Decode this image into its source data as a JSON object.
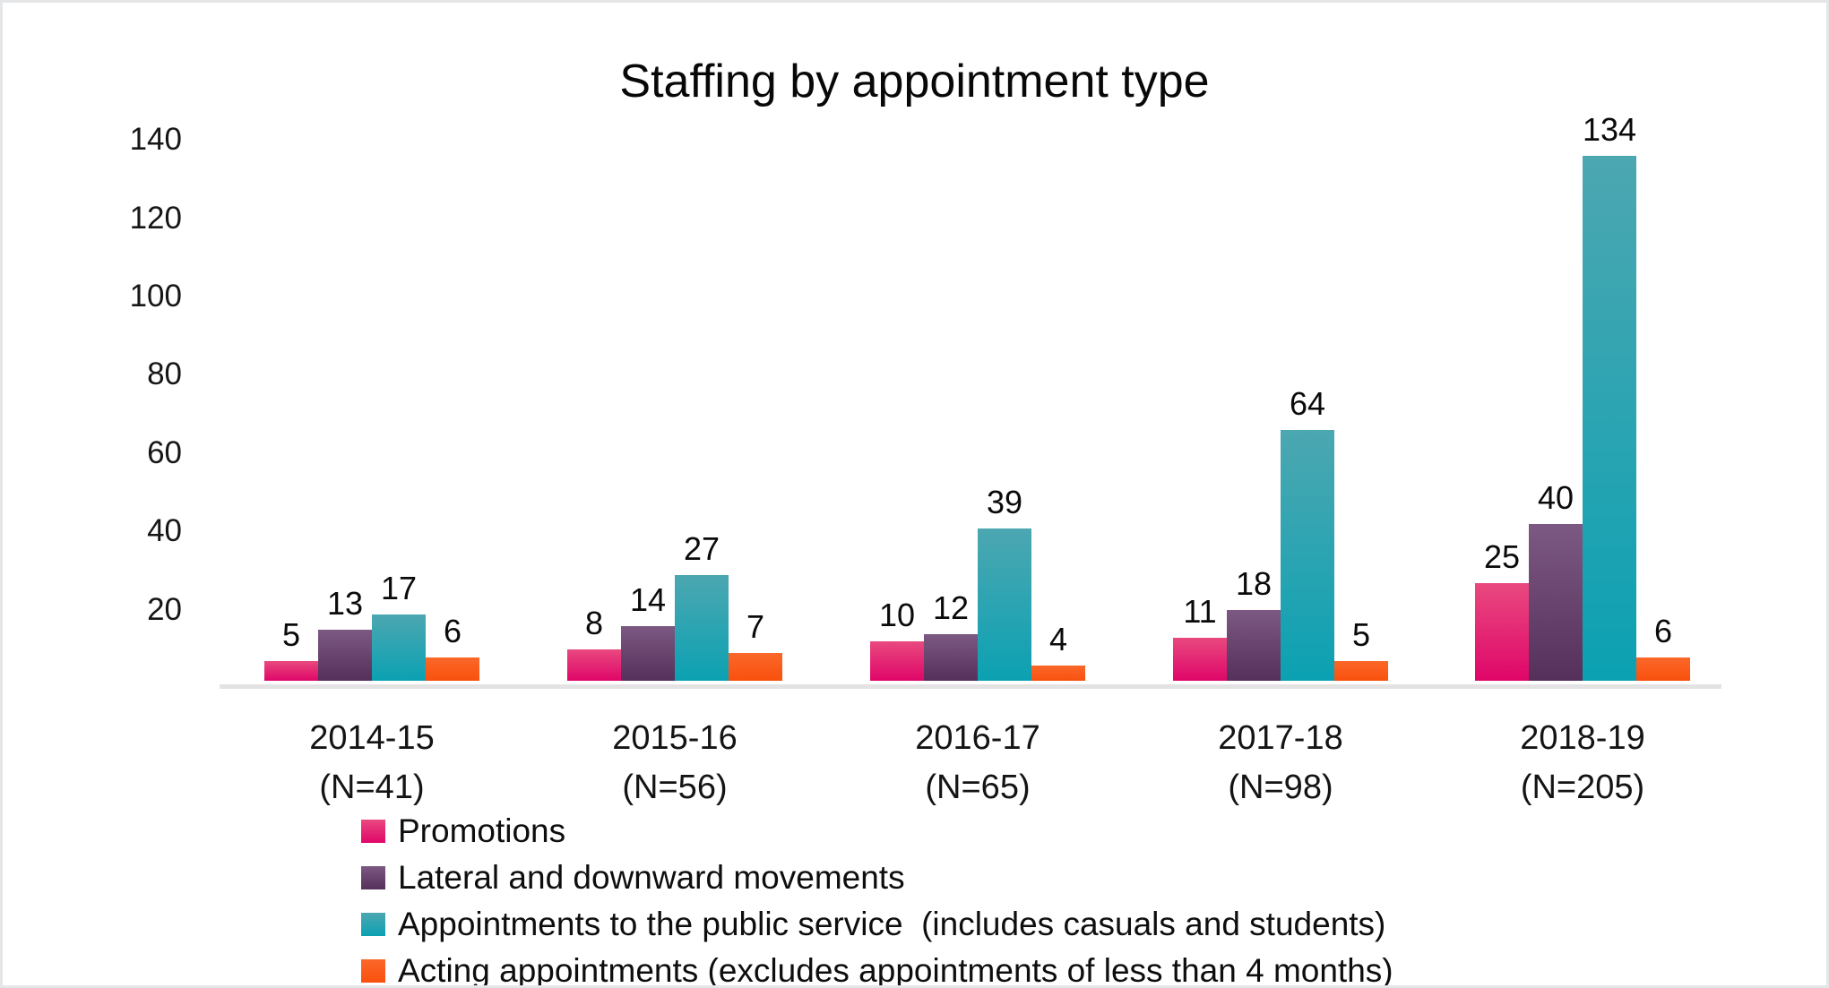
{
  "chart_data": {
    "type": "bar",
    "title": "Staffing by appointment type",
    "categories": [
      "2014-15",
      "2015-16",
      "2016-17",
      "2017-18",
      "2018-19"
    ],
    "category_sublabels": [
      "(N=41)",
      "(N=56)",
      "(N=65)",
      "(N=98)",
      "(N=205)"
    ],
    "series": [
      {
        "key": "promotions",
        "name": "Promotions",
        "values": [
          5,
          8,
          10,
          11,
          25
        ],
        "color_top": "#e9497f",
        "color_bottom": "#df0669"
      },
      {
        "key": "lateral-and-downward-movements",
        "name": "Lateral and downward movements",
        "values": [
          13,
          14,
          12,
          18,
          40
        ],
        "color_top": "#7c5982",
        "color_bottom": "#55305a"
      },
      {
        "key": "appointments-to-the-public-service",
        "name": "Appointments to the public service  (includes casuals and students)",
        "values": [
          17,
          27,
          39,
          64,
          134
        ],
        "color_top": "#4ca7b1",
        "color_bottom": "#0ba1b2"
      },
      {
        "key": "acting-appointments",
        "name": "Acting appointments (excludes appointments of less than 4 months)",
        "values": [
          6,
          7,
          4,
          5,
          6
        ],
        "color_top": "#fa682a",
        "color_bottom": "#f9500d"
      }
    ],
    "ylim": [
      0,
      140
    ],
    "yticks": [
      20,
      40,
      60,
      80,
      100,
      120,
      140
    ],
    "grid": false,
    "data_labels": true,
    "legend_position": "bottom-left",
    "axis_line_color": "#e3e3e3",
    "text_color": "#111111"
  }
}
